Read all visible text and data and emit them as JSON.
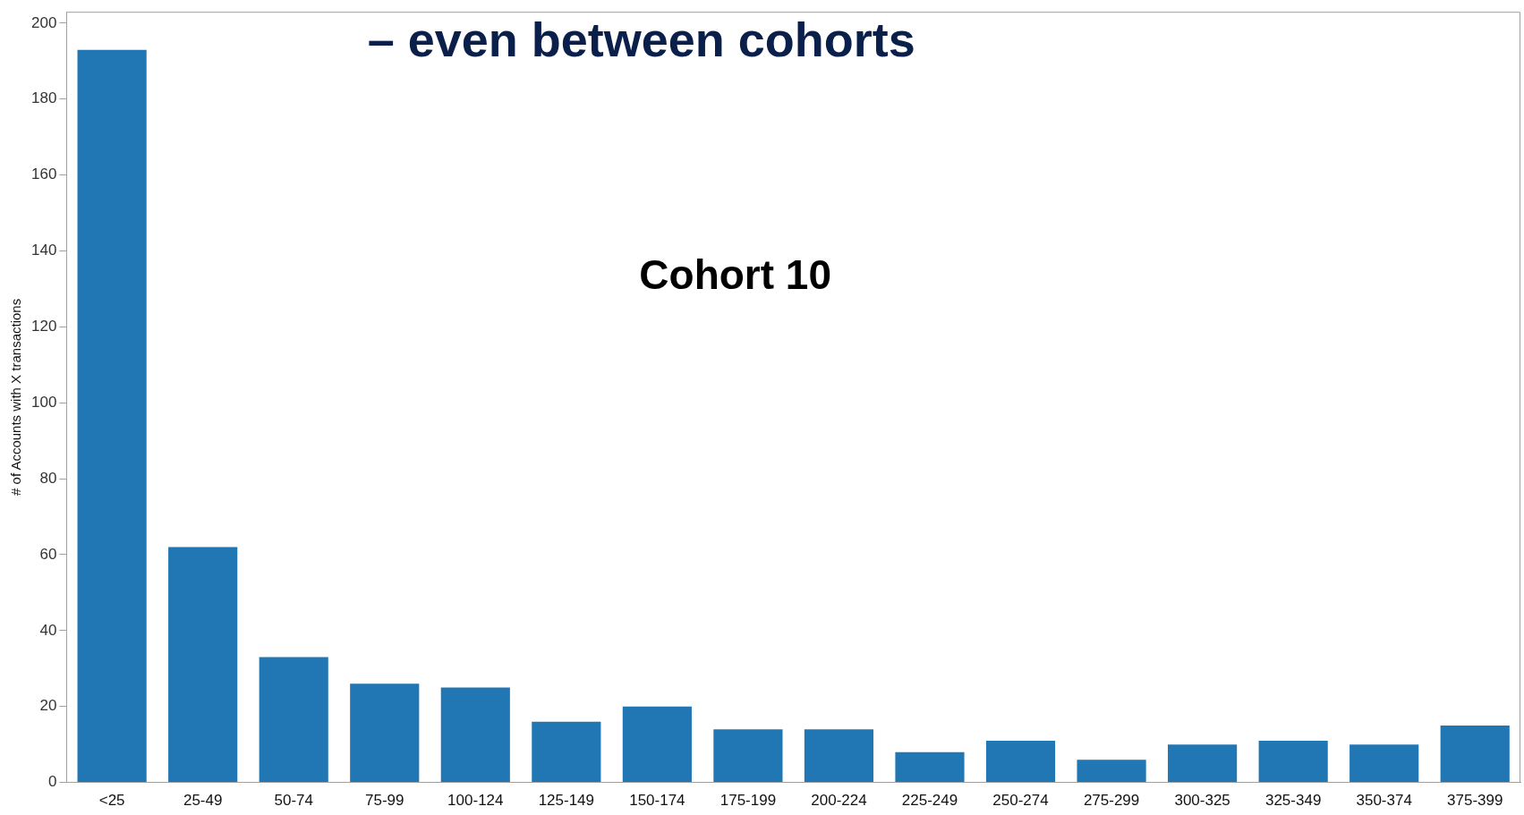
{
  "chart_data": {
    "type": "bar",
    "title": "– even between cohorts",
    "ylabel": "# of Accounts with X transactions",
    "categories": [
      "<25",
      "25-49",
      "50-74",
      "75-99",
      "100-124",
      "125-149",
      "150-174",
      "175-199",
      "200-224",
      "225-249",
      "250-274",
      "275-299",
      "300-325",
      "325-349",
      "350-374",
      "375-399"
    ],
    "values": [
      193,
      62,
      33,
      26,
      25,
      16,
      20,
      14,
      14,
      8,
      11,
      6,
      10,
      11,
      10,
      15
    ],
    "color": "#2077b4",
    "ylim": [
      0,
      203
    ],
    "yticks": [
      0,
      20,
      40,
      60,
      80,
      100,
      120,
      140,
      160,
      180,
      200
    ],
    "grid": false,
    "legend": false,
    "annotations": [
      "Cohort 10"
    ]
  }
}
